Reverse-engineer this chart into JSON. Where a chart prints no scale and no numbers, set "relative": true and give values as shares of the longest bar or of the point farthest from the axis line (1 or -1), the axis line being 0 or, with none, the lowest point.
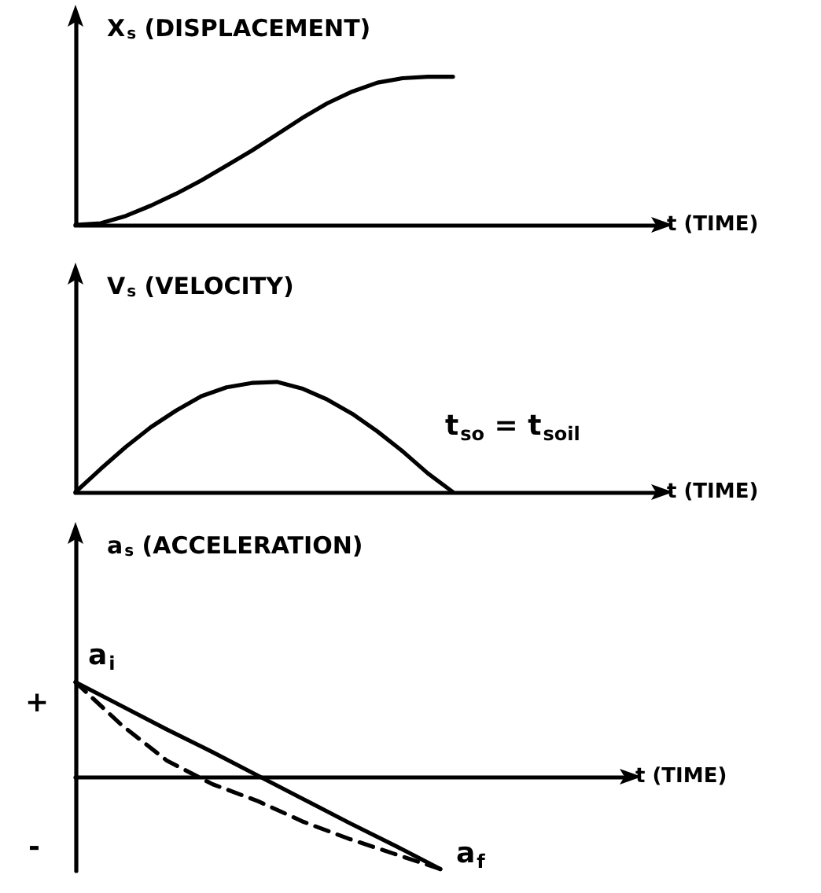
{
  "chart_data": [
    {
      "type": "line",
      "relative": true,
      "xlabel": "t (TIME)",
      "ylabel": "X$_{s}$ (DISPLACEMENT)",
      "categories": [
        null,
        null,
        null,
        null,
        null,
        null,
        null,
        null,
        null,
        null,
        null,
        null,
        null,
        null,
        null,
        null,
        null,
        null,
        null,
        null,
        null,
        null,
        null,
        null
      ],
      "marker": "none",
      "line_style": "solid",
      "series": [
        {
          "color": "#000000",
          "values": [
            0,
            0.01,
            0.06,
            0.13,
            0.21,
            0.3,
            0.4,
            0.5,
            0.61,
            0.72,
            0.82,
            0.9,
            0.96,
            0.99,
            1,
            1,
            null,
            null,
            null,
            null,
            null,
            null,
            null,
            null
          ]
        }
      ]
    },
    {
      "type": "line",
      "relative": true,
      "xlabel": "t (TIME)",
      "ylabel": "V$_{s}$ (VELOCITY)",
      "categories": [
        null,
        null,
        null,
        null,
        null,
        null,
        null,
        null,
        null,
        null,
        null,
        null,
        null,
        null,
        null,
        null,
        null,
        null,
        null,
        null,
        null,
        null,
        null,
        null
      ],
      "marker": "none",
      "line_style": "solid",
      "annotations": [
        "t$_{so}$ = t$_{soil}$"
      ],
      "series": [
        {
          "color": "#000000",
          "values": [
            0,
            0.21,
            0.41,
            0.59,
            0.74,
            0.87,
            0.95,
            0.99,
            1,
            0.94,
            0.84,
            0.71,
            0.55,
            0.37,
            0.17,
            0,
            null,
            null,
            null,
            null,
            null,
            null,
            null,
            null
          ]
        }
      ]
    },
    {
      "type": "line",
      "relative": true,
      "xlabel": "t (TIME)",
      "ylabel": "a$_{s}$ (ACCELERATION)",
      "categories": [
        null,
        null,
        null,
        null,
        null,
        null,
        null,
        null,
        null,
        null,
        null,
        null,
        null
      ],
      "marker": "none",
      "annotations": [
        "+",
        "-",
        "a$_{i}$",
        "a$_{f}$"
      ],
      "series": [
        {
          "color": "#000000",
          "line_style": "solid",
          "values": [
            1,
            0.75,
            0.5,
            0.26,
            0.01,
            -0.24,
            -0.49,
            -0.73,
            -0.98,
            null,
            null,
            null,
            null
          ]
        },
        {
          "color": "#000000",
          "line_style": "dashed",
          "values": [
            1,
            0.55,
            0.17,
            -0.08,
            -0.26,
            -0.48,
            -0.66,
            -0.82,
            -0.98,
            null,
            null,
            null,
            null
          ]
        }
      ]
    }
  ]
}
